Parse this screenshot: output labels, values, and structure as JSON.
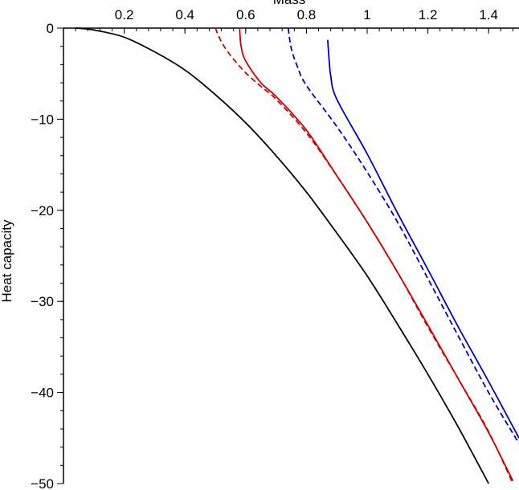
{
  "chart_data": {
    "type": "line",
    "title": "",
    "xlabel": "Mass",
    "ylabel": "Heat capacity",
    "xlim": [
      0,
      1.5
    ],
    "ylim": [
      -50,
      0
    ],
    "x_ticks": [
      0.2,
      0.4,
      0.6,
      0.8,
      1,
      1.2,
      1.4
    ],
    "x_tick_labels": [
      "0.2",
      "0.4",
      "0.6",
      "0.8",
      "1",
      "1.2",
      "1.4"
    ],
    "y_ticks": [
      0,
      -10,
      -20,
      -30,
      -40,
      -50
    ],
    "y_tick_labels": [
      "0",
      "−10",
      "−20",
      "−30",
      "−40",
      "−50"
    ],
    "x_axis_position": "top",
    "grid": false,
    "legend": "none",
    "series": [
      {
        "color": "#000000",
        "dash": "solid",
        "x": [
          0.04,
          0.1,
          0.2,
          0.3,
          0.4,
          0.5,
          0.6,
          0.7,
          0.8,
          0.9,
          1.0,
          1.1,
          1.2,
          1.3,
          1.4
        ],
        "y": [
          0.0,
          -0.2,
          -1.0,
          -2.6,
          -4.6,
          -7.3,
          -10.4,
          -14.0,
          -18.0,
          -22.5,
          -27.2,
          -32.5,
          -38.0,
          -43.8,
          -50.0
        ]
      },
      {
        "color": "#cc0000",
        "dash": "dashed",
        "x": [
          0.5,
          0.52,
          0.55,
          0.6,
          0.65,
          0.7,
          0.8,
          0.9,
          1.0,
          1.1,
          1.2,
          1.3,
          1.4,
          1.48
        ],
        "y": [
          0.0,
          -1.5,
          -3.0,
          -4.9,
          -6.4,
          -7.8,
          -11.5,
          -16.2,
          -21.3,
          -26.8,
          -32.8,
          -38.5,
          -44.3,
          -50.0
        ]
      },
      {
        "color": "#cc0000",
        "dash": "solid",
        "x": [
          0.58,
          0.585,
          0.6,
          0.65,
          0.7,
          0.8,
          0.9,
          1.0,
          1.1,
          1.2,
          1.3,
          1.4,
          1.48
        ],
        "y": [
          -0.1,
          -2.0,
          -3.6,
          -6.0,
          -7.5,
          -11.2,
          -16.2,
          -21.3,
          -26.8,
          -32.6,
          -38.5,
          -44.4,
          -49.7
        ]
      },
      {
        "color": "#0000bb",
        "dash": "dashed",
        "x": [
          0.74,
          0.75,
          0.77,
          0.8,
          0.9,
          1.0,
          1.1,
          1.2,
          1.3,
          1.4,
          1.5
        ],
        "y": [
          0.0,
          -2.2,
          -4.2,
          -6.3,
          -10.8,
          -15.8,
          -21.3,
          -27.5,
          -33.8,
          -40.0,
          -45.6
        ]
      },
      {
        "color": "#0000bb",
        "dash": "solid",
        "x": [
          0.87,
          0.875,
          0.88,
          0.9,
          1.0,
          1.1,
          1.2,
          1.3,
          1.4,
          1.5
        ],
        "y": [
          -1.3,
          -3.6,
          -5.2,
          -7.8,
          -13.8,
          -20.3,
          -26.5,
          -32.8,
          -38.8,
          -45.0
        ]
      }
    ]
  }
}
